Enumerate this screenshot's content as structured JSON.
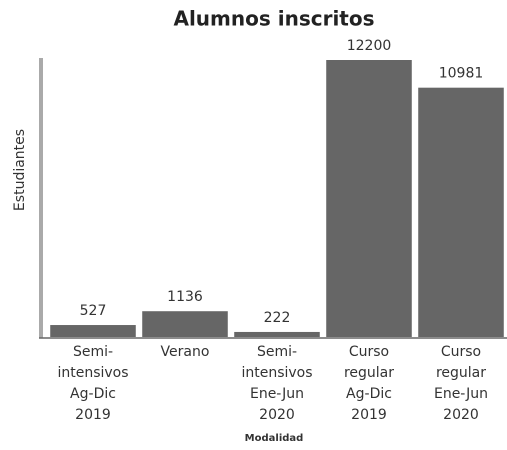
{
  "chart_data": {
    "type": "bar",
    "title": "Alumnos inscritos",
    "x_label": "Modalidad",
    "y_label": "Estudiantes",
    "categories": [
      [
        "Semi-",
        "intensivos",
        "Ag-Dic",
        "2019"
      ],
      [
        "Verano"
      ],
      [
        "Semi-",
        "intensivos",
        "Ene-Jun",
        "2020"
      ],
      [
        "Curso",
        "regular",
        "Ag-Dic",
        "2019"
      ],
      [
        "Curso",
        "regular",
        "Ene-Jun",
        "2020"
      ]
    ],
    "values": [
      527,
      1136,
      222,
      12200,
      10981
    ],
    "color": "#666666",
    "ylim": [
      0,
      12200
    ]
  }
}
